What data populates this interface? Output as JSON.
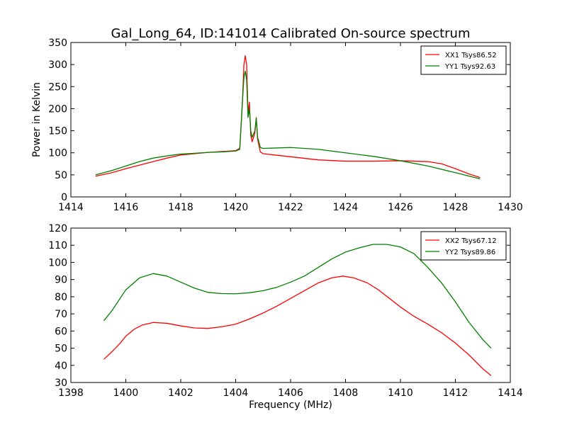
{
  "chart_data": [
    {
      "type": "line",
      "title": "Gal_Long_64, ID:141014 Calibrated On-source spectrum",
      "xlabel": "",
      "ylabel": "Power in Kelvin",
      "xlim": [
        1414,
        1430
      ],
      "ylim": [
        0,
        350
      ],
      "xticks": [
        1414,
        1416,
        1418,
        1420,
        1422,
        1424,
        1426,
        1428,
        1430
      ],
      "yticks": [
        0,
        50,
        100,
        150,
        200,
        250,
        300,
        350
      ],
      "legend_position": "top-right",
      "series": [
        {
          "name": "XX1 Tsys86.52",
          "color": "#ff0000",
          "points": [
            [
              1414.9,
              47
            ],
            [
              1415.5,
              55
            ],
            [
              1416,
              64
            ],
            [
              1416.5,
              72
            ],
            [
              1417,
              80
            ],
            [
              1417.5,
              88
            ],
            [
              1418,
              95
            ],
            [
              1418.5,
              98
            ],
            [
              1419,
              101
            ],
            [
              1419.5,
              103
            ],
            [
              1420,
              105
            ],
            [
              1420.15,
              110
            ],
            [
              1420.25,
              220
            ],
            [
              1420.3,
              300
            ],
            [
              1420.35,
              320
            ],
            [
              1420.4,
              300
            ],
            [
              1420.45,
              190
            ],
            [
              1420.5,
              215
            ],
            [
              1420.55,
              140
            ],
            [
              1420.6,
              125
            ],
            [
              1420.7,
              145
            ],
            [
              1420.75,
              180
            ],
            [
              1420.8,
              130
            ],
            [
              1420.9,
              102
            ],
            [
              1421,
              98
            ],
            [
              1422,
              91
            ],
            [
              1423,
              84
            ],
            [
              1424,
              81
            ],
            [
              1425,
              81
            ],
            [
              1426,
              82
            ],
            [
              1427,
              80
            ],
            [
              1427.5,
              75
            ],
            [
              1428,
              64
            ],
            [
              1428.5,
              52
            ],
            [
              1428.9,
              44
            ]
          ]
        },
        {
          "name": "YY1 Tsys92.63",
          "color": "#008000",
          "points": [
            [
              1414.9,
              50
            ],
            [
              1415.5,
              60
            ],
            [
              1416,
              70
            ],
            [
              1416.5,
              80
            ],
            [
              1417,
              88
            ],
            [
              1417.5,
              93
            ],
            [
              1418,
              97
            ],
            [
              1418.5,
              99
            ],
            [
              1419,
              101
            ],
            [
              1419.5,
              102
            ],
            [
              1420,
              104
            ],
            [
              1420.15,
              108
            ],
            [
              1420.25,
              220
            ],
            [
              1420.3,
              270
            ],
            [
              1420.35,
              285
            ],
            [
              1420.4,
              265
            ],
            [
              1420.45,
              180
            ],
            [
              1420.5,
              200
            ],
            [
              1420.55,
              150
            ],
            [
              1420.6,
              135
            ],
            [
              1420.7,
              150
            ],
            [
              1420.75,
              178
            ],
            [
              1420.8,
              135
            ],
            [
              1420.9,
              112
            ],
            [
              1421,
              110
            ],
            [
              1422,
              112
            ],
            [
              1423,
              108
            ],
            [
              1424,
              100
            ],
            [
              1425,
              92
            ],
            [
              1426,
              82
            ],
            [
              1427,
              70
            ],
            [
              1428,
              55
            ],
            [
              1428.9,
              41
            ]
          ]
        }
      ]
    },
    {
      "type": "line",
      "title": "",
      "xlabel": "Frequency (MHz)",
      "ylabel": "",
      "xlim": [
        1398,
        1414
      ],
      "ylim": [
        30,
        120
      ],
      "xticks": [
        1398,
        1400,
        1402,
        1404,
        1406,
        1408,
        1410,
        1412,
        1414
      ],
      "yticks": [
        30,
        40,
        50,
        60,
        70,
        80,
        90,
        100,
        110,
        120
      ],
      "legend_position": "top-right",
      "series": [
        {
          "name": "XX2 Tsys67.12",
          "color": "#ff0000",
          "points": [
            [
              1399.2,
              43.5
            ],
            [
              1399.5,
              48
            ],
            [
              1399.8,
              53
            ],
            [
              1400,
              57
            ],
            [
              1400.3,
              61
            ],
            [
              1400.6,
              63.5
            ],
            [
              1401,
              65
            ],
            [
              1401.5,
              64.5
            ],
            [
              1402,
              63
            ],
            [
              1402.5,
              61.8
            ],
            [
              1403,
              61.5
            ],
            [
              1403.5,
              62.5
            ],
            [
              1404,
              64
            ],
            [
              1404.5,
              67
            ],
            [
              1405,
              70.5
            ],
            [
              1405.5,
              74.5
            ],
            [
              1406,
              79
            ],
            [
              1406.5,
              83.5
            ],
            [
              1407,
              88
            ],
            [
              1407.5,
              91
            ],
            [
              1407.9,
              92
            ],
            [
              1408.3,
              91
            ],
            [
              1408.8,
              88
            ],
            [
              1409.2,
              84
            ],
            [
              1409.6,
              79
            ],
            [
              1410,
              74
            ],
            [
              1410.5,
              68.5
            ],
            [
              1411,
              64
            ],
            [
              1411.5,
              59
            ],
            [
              1412,
              53
            ],
            [
              1412.5,
              46
            ],
            [
              1413,
              38
            ],
            [
              1413.3,
              34
            ]
          ]
        },
        {
          "name": "YY2 Tsys89.86",
          "color": "#008000",
          "points": [
            [
              1399.2,
              66
            ],
            [
              1399.5,
              72
            ],
            [
              1400,
              84
            ],
            [
              1400.5,
              91
            ],
            [
              1401,
              93.5
            ],
            [
              1401.5,
              92
            ],
            [
              1402,
              88.5
            ],
            [
              1402.5,
              85
            ],
            [
              1403,
              82.5
            ],
            [
              1403.5,
              81.8
            ],
            [
              1404,
              81.7
            ],
            [
              1404.5,
              82.3
            ],
            [
              1405,
              83.5
            ],
            [
              1405.5,
              85.5
            ],
            [
              1406,
              88.5
            ],
            [
              1406.5,
              92
            ],
            [
              1407,
              97
            ],
            [
              1407.5,
              102
            ],
            [
              1408,
              106
            ],
            [
              1408.5,
              108.5
            ],
            [
              1409,
              110.5
            ],
            [
              1409.5,
              110.5
            ],
            [
              1410,
              109
            ],
            [
              1410.5,
              105
            ],
            [
              1411,
              97
            ],
            [
              1411.5,
              88
            ],
            [
              1412,
              77
            ],
            [
              1412.5,
              65
            ],
            [
              1413,
              55
            ],
            [
              1413.3,
              50
            ]
          ]
        }
      ]
    }
  ]
}
